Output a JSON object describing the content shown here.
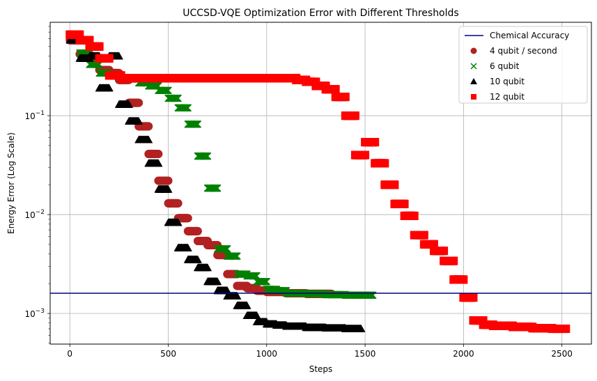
{
  "chart_data": {
    "type": "scatter",
    "title": "UCCSD-VQE Optimization Error with Different Thresholds",
    "xlabel": "Steps",
    "ylabel": "Energy Error (Log Scale)",
    "xlim": [
      -100,
      2650
    ],
    "ylim": [
      0.00049,
      0.88
    ],
    "yscale": "log",
    "grid": true,
    "legend_position": "top-right",
    "xticks": [
      0,
      500,
      1000,
      1500,
      2000,
      2500
    ],
    "xtick_labels": [
      "0",
      "500",
      "1000",
      "1500",
      "2000",
      "2500"
    ],
    "yticks": [
      0.001,
      0.01,
      0.1
    ],
    "ytick_labels": [
      "10^-3",
      "10^-2",
      "10^-1"
    ],
    "reference_line": {
      "name": "Chemical Accuracy",
      "value": 0.0016,
      "color": "#000080"
    },
    "series": [
      {
        "name": "4 qubit / second",
        "marker": "circle",
        "color": "#b22222",
        "plateaus": [
          [
            0,
            50,
            0.58
          ],
          [
            50,
            100,
            0.42
          ],
          [
            100,
            150,
            0.37
          ],
          [
            150,
            200,
            0.29
          ],
          [
            200,
            250,
            0.27
          ],
          [
            250,
            300,
            0.23
          ],
          [
            300,
            350,
            0.135
          ],
          [
            350,
            400,
            0.078
          ],
          [
            400,
            450,
            0.041
          ],
          [
            450,
            500,
            0.022
          ],
          [
            500,
            550,
            0.013
          ],
          [
            550,
            600,
            0.0092
          ],
          [
            600,
            650,
            0.0068
          ],
          [
            650,
            700,
            0.0054
          ],
          [
            700,
            750,
            0.0049
          ],
          [
            750,
            800,
            0.0039
          ],
          [
            800,
            850,
            0.0025
          ],
          [
            850,
            900,
            0.0019
          ],
          [
            900,
            950,
            0.0018
          ],
          [
            950,
            1000,
            0.0017
          ],
          [
            1000,
            1100,
            0.00165
          ],
          [
            1100,
            1200,
            0.0016
          ],
          [
            1200,
            1330,
            0.00158
          ]
        ]
      },
      {
        "name": "6 qubit",
        "marker": "x",
        "color": "#008000",
        "plateaus": [
          [
            0,
            50,
            0.58
          ],
          [
            50,
            100,
            0.43
          ],
          [
            100,
            150,
            0.33
          ],
          [
            150,
            200,
            0.27
          ],
          [
            200,
            250,
            0.26
          ],
          [
            250,
            300,
            0.24
          ],
          [
            300,
            350,
            0.235
          ],
          [
            350,
            400,
            0.215
          ],
          [
            400,
            450,
            0.2
          ],
          [
            450,
            500,
            0.18
          ],
          [
            500,
            550,
            0.15
          ],
          [
            550,
            600,
            0.12
          ],
          [
            600,
            650,
            0.082
          ],
          [
            650,
            700,
            0.039
          ],
          [
            700,
            750,
            0.0185
          ],
          [
            750,
            800,
            0.0045
          ],
          [
            800,
            850,
            0.0038
          ],
          [
            850,
            900,
            0.0025
          ],
          [
            900,
            950,
            0.0024
          ],
          [
            950,
            1000,
            0.0021
          ],
          [
            1000,
            1050,
            0.00175
          ],
          [
            1050,
            1100,
            0.0017
          ],
          [
            1100,
            1200,
            0.0016
          ],
          [
            1200,
            1300,
            0.00158
          ],
          [
            1300,
            1400,
            0.00155
          ],
          [
            1400,
            1540,
            0.00153
          ]
        ]
      },
      {
        "name": "10 qubit",
        "marker": "triangle",
        "color": "#000000",
        "plateaus": [
          [
            0,
            50,
            0.58
          ],
          [
            50,
            100,
            0.38
          ],
          [
            100,
            150,
            0.4
          ],
          [
            150,
            200,
            0.19
          ],
          [
            200,
            250,
            0.4
          ],
          [
            250,
            300,
            0.13
          ],
          [
            300,
            350,
            0.088
          ],
          [
            350,
            400,
            0.057
          ],
          [
            400,
            450,
            0.033
          ],
          [
            450,
            500,
            0.018
          ],
          [
            500,
            550,
            0.0083
          ],
          [
            550,
            600,
            0.0046
          ],
          [
            600,
            650,
            0.0035
          ],
          [
            650,
            700,
            0.0029
          ],
          [
            700,
            750,
            0.0021
          ],
          [
            750,
            800,
            0.0017
          ],
          [
            800,
            850,
            0.0015
          ],
          [
            850,
            900,
            0.0012
          ],
          [
            900,
            950,
            0.00095
          ],
          [
            950,
            1000,
            0.00082
          ],
          [
            1000,
            1050,
            0.00078
          ],
          [
            1050,
            1100,
            0.00076
          ],
          [
            1100,
            1200,
            0.00074
          ],
          [
            1200,
            1300,
            0.00072
          ],
          [
            1300,
            1400,
            0.00071
          ],
          [
            1400,
            1480,
            0.0007
          ]
        ]
      },
      {
        "name": "12 qubit",
        "marker": "square",
        "color": "#ff0000",
        "plateaus": [
          [
            0,
            50,
            0.66
          ],
          [
            50,
            100,
            0.58
          ],
          [
            100,
            150,
            0.5
          ],
          [
            150,
            200,
            0.38
          ],
          [
            200,
            260,
            0.255
          ],
          [
            260,
            1150,
            0.24
          ],
          [
            1150,
            1200,
            0.23
          ],
          [
            1200,
            1250,
            0.22
          ],
          [
            1250,
            1300,
            0.2
          ],
          [
            1300,
            1350,
            0.185
          ],
          [
            1350,
            1400,
            0.155
          ],
          [
            1400,
            1450,
            0.1
          ],
          [
            1450,
            1500,
            0.04
          ],
          [
            1500,
            1550,
            0.054
          ],
          [
            1550,
            1600,
            0.033
          ],
          [
            1600,
            1650,
            0.02
          ],
          [
            1650,
            1700,
            0.0128
          ],
          [
            1700,
            1750,
            0.0097
          ],
          [
            1750,
            1800,
            0.0062
          ],
          [
            1800,
            1850,
            0.005
          ],
          [
            1850,
            1900,
            0.0043
          ],
          [
            1900,
            1950,
            0.0034
          ],
          [
            1950,
            2000,
            0.0022
          ],
          [
            2000,
            2050,
            0.00145
          ],
          [
            2050,
            2100,
            0.00085
          ],
          [
            2100,
            2150,
            0.00077
          ],
          [
            2150,
            2250,
            0.00075
          ],
          [
            2250,
            2350,
            0.00073
          ],
          [
            2350,
            2450,
            0.00071
          ],
          [
            2450,
            2520,
            0.0007
          ]
        ]
      }
    ]
  }
}
